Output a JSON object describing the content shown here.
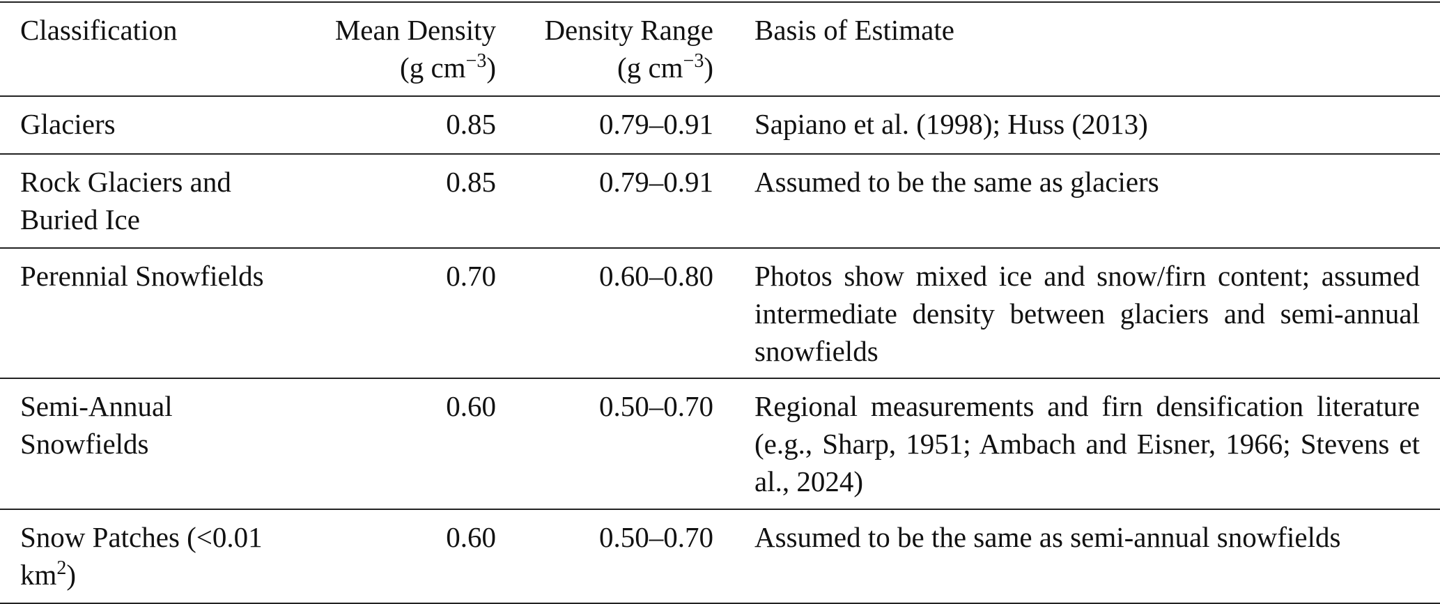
{
  "header": {
    "columns": [
      {
        "label": "Classification"
      },
      {
        "label": "Mean Density",
        "unit": {
          "before": "(g cm",
          "sup": "−3",
          "after": ")"
        }
      },
      {
        "label": "Density Range",
        "unit": {
          "before": "(g cm",
          "sup": "−3",
          "after": ")"
        }
      },
      {
        "label": "Basis of Estimate"
      }
    ]
  },
  "table": {
    "rows": [
      {
        "classification": "Glaciers",
        "mean_density": "0.85",
        "density_range": "0.79–0.91",
        "basis": "Sapiano et al. (1998); Huss (2013)"
      },
      {
        "classification": "Rock Glaciers and Buried Ice",
        "mean_density": "0.85",
        "density_range": "0.79–0.91",
        "basis": "Assumed to be the same as glaciers"
      },
      {
        "classification": "Perennial Snowfields",
        "mean_density": "0.70",
        "density_range": "0.60–0.80",
        "basis": "Photos show mixed ice and snow/firn content; assumed intermediate density between glaciers and semi-annual snowfields"
      },
      {
        "classification": "Semi-Annual Snowfields",
        "mean_density": "0.60",
        "density_range": "0.50–0.70",
        "basis": "Regional measurements and firn densification literature (e.g., Sharp, 1951; Ambach and Eisner, 1966; Stevens et al., 2024)"
      },
      {
        "classification": {
          "before": "Snow Patches (<0.01 km",
          "sup": "2",
          "after": ")"
        },
        "mean_density": "0.60",
        "density_range": "0.50–0.70",
        "basis": "Assumed to be the same as semi-annual snowfields"
      }
    ]
  }
}
